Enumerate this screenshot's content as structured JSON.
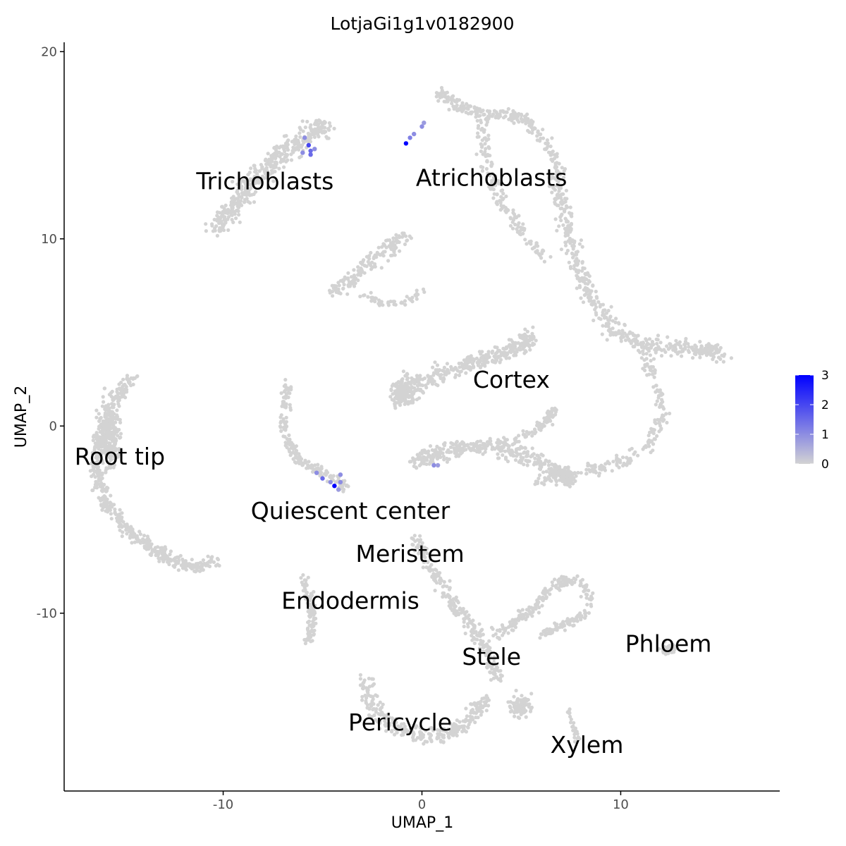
{
  "chart_data": {
    "type": "scatter",
    "title": "LotjaGi1g1v0182900",
    "xlabel": "UMAP_1",
    "ylabel": "UMAP_2",
    "xlim": [
      -18.0,
      18.0
    ],
    "ylim": [
      -19.5,
      20.5
    ],
    "x_ticks": [
      -10,
      0,
      10
    ],
    "x_tick_labels": [
      "-10",
      "0",
      "10"
    ],
    "y_ticks": [
      -10,
      0,
      10,
      20
    ],
    "y_tick_labels": [
      "-10",
      "0",
      "10",
      "20"
    ],
    "grid": false,
    "colors": {
      "background_points": "#d3d3d3",
      "low": "#d3d3d3",
      "high": "#0000ff",
      "axis": "#000000"
    },
    "legend": {
      "placement": "right",
      "type": "gradient",
      "min": 0,
      "max": 3,
      "ticks": [
        0,
        1,
        2,
        3
      ],
      "tick_labels": [
        "0",
        "1",
        "2",
        "3"
      ]
    },
    "cluster_labels": [
      {
        "text": "Trichoblasts",
        "x": -7.9,
        "y": 13.0
      },
      {
        "text": "Atrichoblasts",
        "x": 3.5,
        "y": 13.2
      },
      {
        "text": "Cortex",
        "x": 4.5,
        "y": 2.4
      },
      {
        "text": "Root tip",
        "x": -15.2,
        "y": -1.7
      },
      {
        "text": "Quiescent center",
        "x": -3.6,
        "y": -4.6
      },
      {
        "text": "Meristem",
        "x": -0.6,
        "y": -6.9
      },
      {
        "text": "Endodermis",
        "x": -3.6,
        "y": -9.4
      },
      {
        "text": "Stele",
        "x": 3.5,
        "y": -12.4
      },
      {
        "text": "Phloem",
        "x": 12.4,
        "y": -11.7
      },
      {
        "text": "Pericycle",
        "x": -1.1,
        "y": -15.9
      },
      {
        "text": "Xylem",
        "x": 8.3,
        "y": -17.1
      }
    ],
    "clusters": [
      {
        "region": "Trichoblasts",
        "shape": "band",
        "points": [
          [
            -10.4,
            10.4
          ],
          [
            -9.6,
            11.6
          ],
          [
            -8.8,
            12.7
          ],
          [
            -7.8,
            13.8
          ],
          [
            -6.8,
            14.8
          ],
          [
            -5.6,
            15.6
          ],
          [
            -4.8,
            16.0
          ]
        ],
        "width": 1.6,
        "n": 420
      },
      {
        "region": "Atrichoblasts-top",
        "shape": "band",
        "points": [
          [
            0.9,
            17.8
          ],
          [
            1.6,
            17.2
          ],
          [
            2.4,
            16.9
          ],
          [
            3.4,
            16.6
          ],
          [
            4.4,
            16.7
          ],
          [
            5.4,
            16.2
          ],
          [
            6.2,
            15.2
          ],
          [
            6.7,
            13.9
          ]
        ],
        "width": 1.0,
        "n": 220
      },
      {
        "region": "Atrichoblasts-right",
        "shape": "band",
        "points": [
          [
            6.7,
            13.9
          ],
          [
            7.0,
            12.0
          ],
          [
            7.4,
            10.0
          ],
          [
            8.0,
            8.2
          ],
          [
            8.6,
            6.6
          ],
          [
            9.6,
            5.2
          ],
          [
            11.0,
            4.4
          ],
          [
            12.6,
            4.2
          ],
          [
            14.2,
            4.1
          ],
          [
            15.1,
            3.9
          ]
        ],
        "width": 1.3,
        "n": 480
      },
      {
        "region": "Atrichoblasts-inner",
        "shape": "band",
        "points": [
          [
            3.0,
            16.4
          ],
          [
            3.2,
            14.2
          ],
          [
            4.0,
            12.0
          ],
          [
            5.0,
            10.5
          ],
          [
            6.2,
            9.0
          ]
        ],
        "width": 1.0,
        "n": 160
      },
      {
        "region": "Right-loop",
        "shape": "band",
        "points": [
          [
            11.0,
            4.4
          ],
          [
            11.6,
            2.6
          ],
          [
            12.2,
            0.6
          ],
          [
            11.5,
            -1.0
          ],
          [
            10.0,
            -1.9
          ],
          [
            8.6,
            -2.3
          ],
          [
            7.0,
            -2.8
          ],
          [
            5.8,
            -2.9
          ]
        ],
        "width": 1.0,
        "n": 220
      },
      {
        "region": "Upper-mid",
        "shape": "band",
        "points": [
          [
            -4.5,
            7.2
          ],
          [
            -3.6,
            7.8
          ],
          [
            -2.6,
            8.8
          ],
          [
            -1.7,
            9.5
          ],
          [
            -1.0,
            10.1
          ]
        ],
        "width": 1.2,
        "n": 150
      },
      {
        "region": "Upper-mid-tail",
        "shape": "band",
        "points": [
          [
            -3.0,
            7.1
          ],
          [
            -2.0,
            6.5
          ],
          [
            -0.8,
            6.6
          ],
          [
            0.2,
            7.4
          ]
        ],
        "width": 0.6,
        "n": 50
      },
      {
        "region": "Cortex-upper",
        "shape": "band",
        "points": [
          [
            -1.4,
            1.5
          ],
          [
            0.4,
            2.6
          ],
          [
            2.2,
            3.3
          ],
          [
            3.8,
            3.8
          ],
          [
            5.0,
            4.3
          ],
          [
            5.4,
            4.8
          ]
        ],
        "width": 1.4,
        "n": 380
      },
      {
        "region": "Cortex-upper-blob",
        "shape": "blob",
        "cx": -0.9,
        "cy": 2.0,
        "rx": 0.9,
        "ry": 1.3,
        "n": 120
      },
      {
        "region": "Cortex-lower",
        "shape": "band",
        "points": [
          [
            -0.5,
            -1.9
          ],
          [
            1.2,
            -1.3
          ],
          [
            3.2,
            -1.0
          ],
          [
            5.2,
            -1.6
          ],
          [
            6.8,
            -2.4
          ],
          [
            7.6,
            -2.9
          ]
        ],
        "width": 1.4,
        "n": 420
      },
      {
        "region": "Cortex-lower-right",
        "shape": "band",
        "points": [
          [
            4.2,
            -1.0
          ],
          [
            5.6,
            -0.3
          ],
          [
            6.4,
            0.4
          ],
          [
            6.6,
            1.0
          ]
        ],
        "width": 0.7,
        "n": 80
      },
      {
        "region": "Root-tip",
        "shape": "band",
        "points": [
          [
            -14.6,
            2.6
          ],
          [
            -15.4,
            1.4
          ],
          [
            -16.2,
            -0.4
          ],
          [
            -16.4,
            -2.2
          ],
          [
            -16.0,
            -4.0
          ],
          [
            -15.0,
            -5.4
          ],
          [
            -13.8,
            -6.4
          ],
          [
            -12.8,
            -7.0
          ],
          [
            -11.4,
            -7.6
          ],
          [
            -10.4,
            -7.1
          ]
        ],
        "width": 1.0,
        "n": 520
      },
      {
        "region": "Root-tip-core",
        "shape": "blob",
        "cx": -15.7,
        "cy": -0.5,
        "rx": 0.9,
        "ry": 2.6,
        "n": 220
      },
      {
        "region": "Quiescent-center",
        "shape": "band",
        "points": [
          [
            -6.6,
            2.5
          ],
          [
            -6.9,
            1.0
          ],
          [
            -6.8,
            -0.8
          ],
          [
            -6.2,
            -1.8
          ],
          [
            -5.2,
            -2.4
          ],
          [
            -4.2,
            -2.9
          ],
          [
            -3.9,
            -3.4
          ]
        ],
        "width": 0.8,
        "n": 200
      },
      {
        "region": "Meristem-stele",
        "shape": "band",
        "points": [
          [
            -0.4,
            -6.0
          ],
          [
            0.6,
            -7.8
          ],
          [
            1.6,
            -9.6
          ],
          [
            2.6,
            -10.8
          ],
          [
            3.4,
            -12.2
          ],
          [
            3.8,
            -13.6
          ]
        ],
        "width": 1.0,
        "n": 260
      },
      {
        "region": "Stele-right",
        "shape": "band",
        "points": [
          [
            3.6,
            -11.2
          ],
          [
            4.8,
            -10.4
          ],
          [
            5.8,
            -9.6
          ],
          [
            6.6,
            -8.6
          ],
          [
            7.4,
            -8.2
          ],
          [
            8.2,
            -8.5
          ],
          [
            8.4,
            -9.5
          ]
        ],
        "width": 0.9,
        "n": 180
      },
      {
        "region": "Stele-right-lower",
        "shape": "band",
        "points": [
          [
            6.0,
            -11.2
          ],
          [
            6.8,
            -10.8
          ],
          [
            7.6,
            -10.4
          ],
          [
            8.3,
            -10.0
          ]
        ],
        "width": 0.7,
        "n": 80
      },
      {
        "region": "Endodermis",
        "shape": "band",
        "points": [
          [
            -5.9,
            -8.2
          ],
          [
            -5.6,
            -9.4
          ],
          [
            -5.5,
            -10.6
          ],
          [
            -5.7,
            -11.6
          ]
        ],
        "width": 0.7,
        "n": 100
      },
      {
        "region": "Pericycle",
        "shape": "band",
        "points": [
          [
            -2.8,
            -13.6
          ],
          [
            -2.4,
            -15.2
          ],
          [
            -1.2,
            -16.2
          ],
          [
            0.4,
            -16.6
          ],
          [
            1.6,
            -16.4
          ],
          [
            2.4,
            -15.6
          ],
          [
            3.2,
            -14.6
          ]
        ],
        "width": 1.2,
        "n": 300
      },
      {
        "region": "Pericycle-right",
        "shape": "blob",
        "cx": 5.0,
        "cy": -15.0,
        "rx": 0.9,
        "ry": 0.9,
        "n": 80
      },
      {
        "region": "Phloem",
        "shape": "blob",
        "cx": 12.4,
        "cy": -11.9,
        "rx": 0.6,
        "ry": 0.4,
        "n": 40
      },
      {
        "region": "Xylem",
        "shape": "band",
        "points": [
          [
            7.4,
            -15.2
          ],
          [
            7.6,
            -16.0
          ],
          [
            7.9,
            -16.9
          ]
        ],
        "width": 0.4,
        "n": 25
      }
    ],
    "expressing_points": [
      {
        "x": -5.9,
        "y": 15.4,
        "value": 1.0
      },
      {
        "x": -5.7,
        "y": 15.0,
        "value": 2.0
      },
      {
        "x": -5.6,
        "y": 14.7,
        "value": 1.5
      },
      {
        "x": -5.4,
        "y": 14.8,
        "value": 1.0
      },
      {
        "x": -6.0,
        "y": 14.6,
        "value": 1.0
      },
      {
        "x": -5.6,
        "y": 14.5,
        "value": 1.5
      },
      {
        "x": -0.8,
        "y": 15.1,
        "value": 3.0
      },
      {
        "x": -0.6,
        "y": 15.4,
        "value": 1.2
      },
      {
        "x": -0.4,
        "y": 15.6,
        "value": 1.0
      },
      {
        "x": 0.0,
        "y": 16.0,
        "value": 1.0
      },
      {
        "x": 0.1,
        "y": 16.2,
        "value": 0.8
      },
      {
        "x": -4.4,
        "y": -3.2,
        "value": 3.0
      },
      {
        "x": -4.6,
        "y": -3.0,
        "value": 1.0
      },
      {
        "x": -5.0,
        "y": -2.8,
        "value": 1.5
      },
      {
        "x": -5.3,
        "y": -2.5,
        "value": 1.0
      },
      {
        "x": -4.1,
        "y": -2.6,
        "value": 1.0
      },
      {
        "x": -4.2,
        "y": -3.4,
        "value": 0.8
      },
      {
        "x": -4.1,
        "y": -3.0,
        "value": 1.0
      },
      {
        "x": 0.6,
        "y": -2.1,
        "value": 1.0
      },
      {
        "x": 0.8,
        "y": -2.1,
        "value": 0.8
      }
    ]
  }
}
